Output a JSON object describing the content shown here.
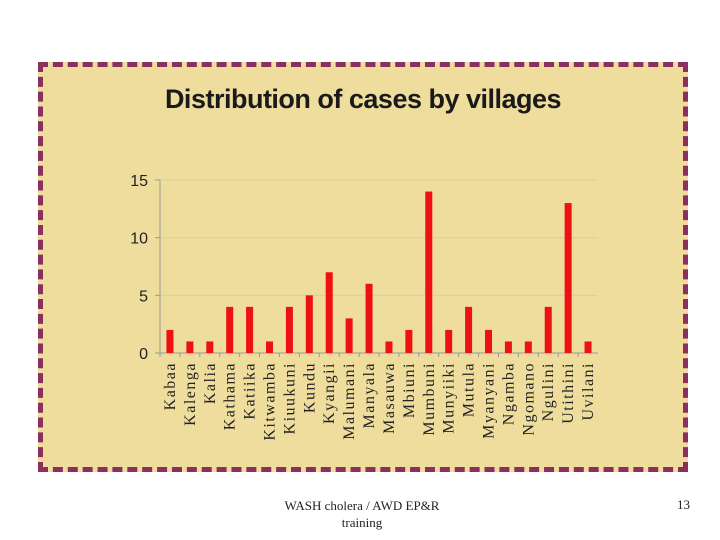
{
  "slide": {
    "footer_line1": "WASH cholera / AWD EP&R",
    "footer_line2": "training",
    "page_number": "13"
  },
  "colors": {
    "frame_fill": "#eedd9d",
    "frame_border": "#8b2f5f",
    "bar": "#ee1111",
    "grid": "#d8cfa8"
  },
  "chart_data": {
    "type": "bar",
    "title": "Distribution of cases by villages",
    "xlabel": "",
    "ylabel": "",
    "ylim": [
      0,
      15
    ],
    "yticks": [
      0,
      5,
      10,
      15
    ],
    "grid": true,
    "categories": [
      "Kabaa",
      "Kalenga",
      "Kalia",
      "Kathama",
      "Katiika",
      "Kitwamba",
      "Kiuukuni",
      "Kundu",
      "Kyangii",
      "Malumani",
      "Manyala",
      "Masauwa",
      "Mbiuni",
      "Mumbuni",
      "Munyiiki",
      "Mutula",
      "Myanyani",
      "Ngamba",
      "Ngomano",
      "Ngulini",
      "Utithini",
      "Uvilani"
    ],
    "values": [
      2,
      1,
      1,
      4,
      4,
      1,
      4,
      5,
      7,
      3,
      6,
      1,
      2,
      14,
      2,
      4,
      2,
      1,
      1,
      4,
      13,
      1
    ]
  }
}
